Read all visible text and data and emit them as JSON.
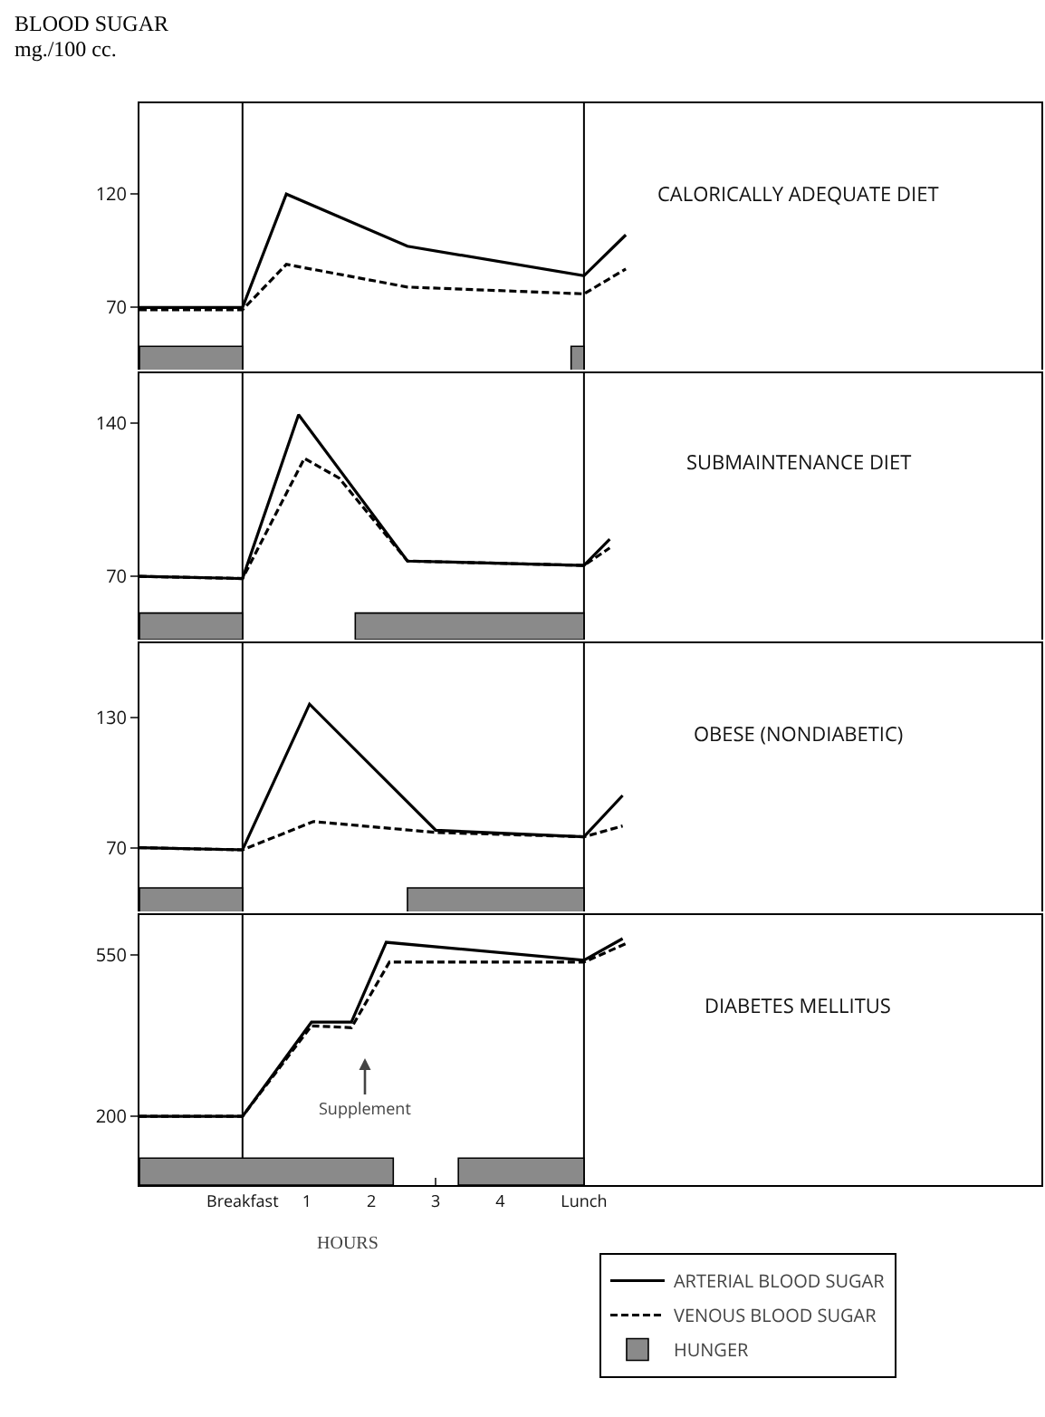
{
  "chart_data": [
    {
      "type": "line",
      "title": "CALORICALLY ADEQUATE DIET",
      "ylabel": "BLOOD SUGAR mg./100 cc.",
      "xlim": [
        -1.6,
        12.4
      ],
      "ylim": [
        41,
        160
      ],
      "yticks": [
        70,
        120
      ],
      "tick_labels": "y",
      "grid": false,
      "legend": false,
      "marker": "none",
      "series": [
        {
          "color": "#000000",
          "line_style": "solid",
          "x": [
            -1.6,
            0,
            0.68,
            2.56,
            5.3,
            5.95
          ],
          "values": [
            70,
            70,
            120,
            97,
            84,
            102
          ]
        },
        {
          "color": "#000000",
          "line_style": "dashed",
          "x": [
            -1.6,
            0,
            0.68,
            2.56,
            5.3,
            5.95
          ],
          "values": [
            69,
            69,
            89,
            79,
            76,
            87
          ]
        }
      ],
      "ref_lines": [
        {
          "axis": "x",
          "value": 0,
          "color": "#000000"
        },
        {
          "axis": "x",
          "value": 5.3,
          "color": "#000000"
        }
      ],
      "bands": [
        {
          "axis": "x",
          "from": -1.6,
          "to": 0,
          "color": "#8a8a8a"
        },
        {
          "axis": "x",
          "from": 5.1,
          "to": 5.3,
          "color": "#8a8a8a"
        }
      ]
    },
    {
      "type": "line",
      "title": "SUBMAINTENANCE DIET",
      "xlim": [
        -1.6,
        12.4
      ],
      "ylim": [
        41,
        163
      ],
      "yticks": [
        70,
        140
      ],
      "tick_labels": "y",
      "grid": false,
      "legend": false,
      "marker": "none",
      "series": [
        {
          "color": "#000000",
          "line_style": "solid",
          "x": [
            -1.6,
            0,
            0.87,
            2.56,
            5.3,
            5.7
          ],
          "values": [
            70,
            69,
            144,
            77,
            75,
            87
          ]
        },
        {
          "color": "#000000",
          "line_style": "dashed",
          "x": [
            -1.6,
            0,
            0.96,
            1.5,
            2.56,
            5.3,
            5.7
          ],
          "values": [
            70,
            69,
            124,
            115,
            77,
            75,
            83
          ]
        }
      ],
      "ref_lines": [
        {
          "axis": "x",
          "value": 0,
          "color": "#000000"
        },
        {
          "axis": "x",
          "value": 5.3,
          "color": "#000000"
        }
      ],
      "bands": [
        {
          "axis": "x",
          "from": -1.6,
          "to": 0,
          "color": "#8a8a8a"
        },
        {
          "axis": "x",
          "from": 1.75,
          "to": 5.3,
          "color": "#8a8a8a"
        }
      ]
    },
    {
      "type": "line",
      "title": "OBESE (NONDIABETIC)",
      "xlim": [
        -1.6,
        12.4
      ],
      "ylim": [
        39,
        164
      ],
      "yticks": [
        70,
        130
      ],
      "tick_labels": "y",
      "grid": false,
      "legend": false,
      "marker": "none",
      "series": [
        {
          "color": "#000000",
          "line_style": "solid",
          "x": [
            -1.6,
            0,
            1.04,
            3.0,
            5.3,
            5.9
          ],
          "values": [
            70,
            69,
            136,
            78,
            75,
            94
          ]
        },
        {
          "color": "#000000",
          "line_style": "dashed",
          "x": [
            -1.6,
            0,
            1.1,
            3.0,
            5.3,
            5.9
          ],
          "values": [
            70,
            69,
            82,
            77,
            75,
            80
          ]
        }
      ],
      "ref_lines": [
        {
          "axis": "x",
          "value": 0,
          "color": "#000000"
        },
        {
          "axis": "x",
          "value": 5.3,
          "color": "#000000"
        }
      ],
      "bands": [
        {
          "axis": "x",
          "from": -1.6,
          "to": 0,
          "color": "#8a8a8a"
        },
        {
          "axis": "x",
          "from": 2.56,
          "to": 5.3,
          "color": "#8a8a8a"
        }
      ]
    },
    {
      "type": "line",
      "title": "DIABETES MELLITUS",
      "xlabel": "HOURS",
      "xlim": [
        -1.6,
        12.4
      ],
      "xticks": [
        {
          "value": 0,
          "label": "Breakfast"
        },
        1,
        2,
        3,
        4,
        {
          "value": 5.3,
          "label": "Lunch"
        }
      ],
      "ylim": [
        51,
        636
      ],
      "yticks": [
        200,
        550
      ],
      "grid": false,
      "legend": "bottom right",
      "marker": "none",
      "series": [
        {
          "name": "ARTERIAL BLOOD SUGAR",
          "color": "#000000",
          "line_style": "solid",
          "x": [
            -1.6,
            0,
            1.07,
            1.69,
            2.23,
            5.3,
            5.9
          ],
          "values": [
            200,
            200,
            404,
            404,
            577,
            538,
            585
          ]
        },
        {
          "name": "VENOUS BLOOD SUGAR",
          "color": "#000000",
          "line_style": "dashed",
          "x": [
            -1.6,
            0,
            1.07,
            1.69,
            2.28,
            5.3,
            5.95
          ],
          "values": [
            200,
            200,
            396,
            392,
            534,
            534,
            574
          ]
        }
      ],
      "annotations": [
        "Supplement"
      ],
      "ref_lines": [
        {
          "axis": "x",
          "value": 0,
          "color": "#000000"
        },
        {
          "axis": "x",
          "value": 5.3,
          "color": "#000000"
        }
      ],
      "bands": [
        {
          "axis": "x",
          "from": -1.6,
          "to": 2.34,
          "color": "#8a8a8a",
          "label": "HUNGER"
        },
        {
          "axis": "x",
          "from": 3.35,
          "to": 5.3,
          "color": "#8a8a8a"
        }
      ]
    }
  ]
}
